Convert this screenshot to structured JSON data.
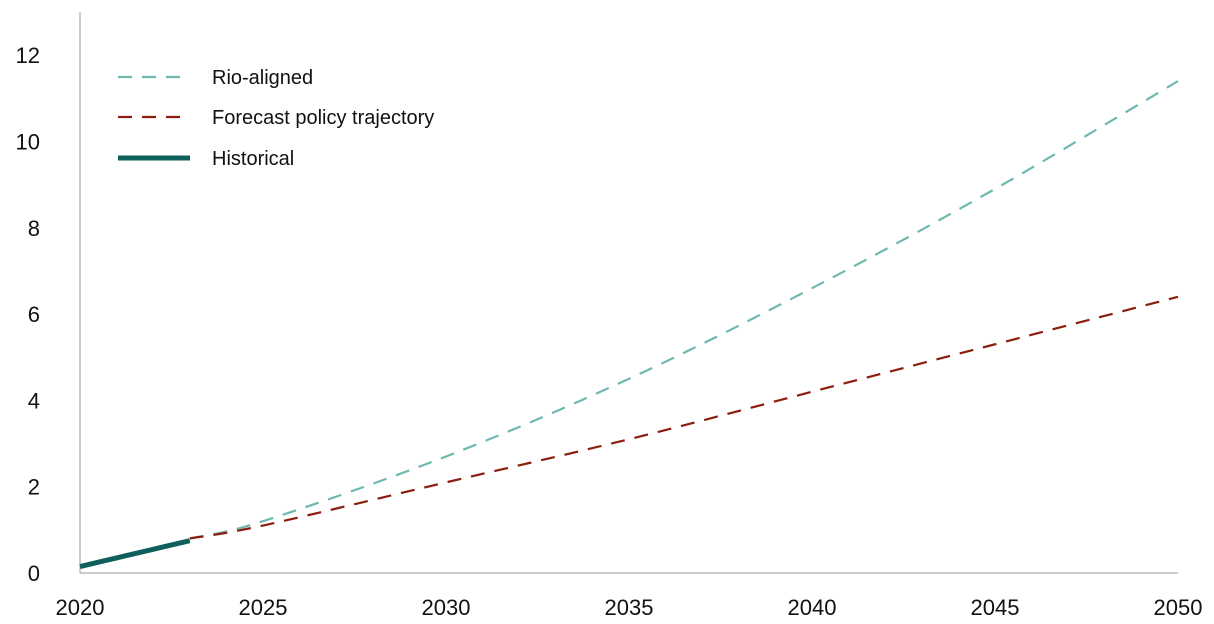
{
  "chart_data": {
    "type": "line",
    "title": "",
    "xlabel": "",
    "ylabel": "",
    "xlim": [
      2020,
      2050
    ],
    "ylim": [
      0,
      13
    ],
    "x_ticks": [
      2020,
      2025,
      2030,
      2035,
      2040,
      2045,
      2050
    ],
    "y_ticks": [
      0,
      2,
      4,
      6,
      8,
      10,
      12
    ],
    "grid": false,
    "legend_position": "top-left",
    "series": [
      {
        "name": "Rio-aligned",
        "color": "#6fb8b2",
        "style": "dashed",
        "x": [
          2023,
          2025,
          2030,
          2035,
          2040,
          2045,
          2050
        ],
        "y": [
          0.8,
          1.2,
          2.7,
          4.5,
          6.6,
          8.9,
          11.4
        ]
      },
      {
        "name": "Forecast policy trajectory",
        "color": "#8b1e0e",
        "style": "dashed",
        "x": [
          2023,
          2025,
          2030,
          2035,
          2040,
          2045,
          2050
        ],
        "y": [
          0.8,
          1.1,
          2.1,
          3.1,
          4.2,
          5.3,
          6.4
        ]
      },
      {
        "name": "Historical",
        "color": "#0f5f5c",
        "style": "solid",
        "x": [
          2020,
          2021,
          2022,
          2023
        ],
        "y": [
          0.15,
          0.35,
          0.55,
          0.75
        ]
      }
    ]
  }
}
